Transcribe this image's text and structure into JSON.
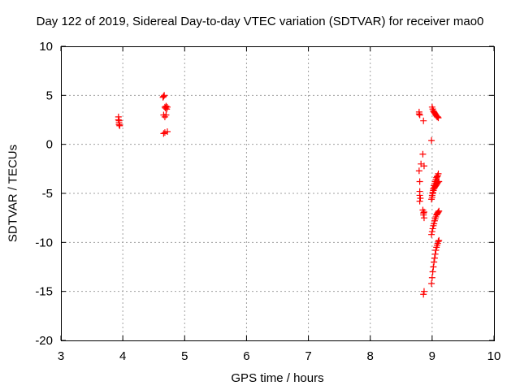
{
  "chart_data": {
    "type": "scatter",
    "title": "Day 122 of 2019, Sidereal Day-to-day VTEC variation (SDTVAR) for receiver mao0",
    "xlabel": "GPS time / hours",
    "ylabel": "SDTVAR / TECUs",
    "xlim": [
      3,
      10
    ],
    "ylim": [
      -20,
      10
    ],
    "xticks": [
      3,
      4,
      5,
      6,
      7,
      8,
      9,
      10
    ],
    "yticks": [
      -20,
      -15,
      -10,
      -5,
      0,
      5,
      10
    ],
    "grid": true,
    "marker": "+",
    "color": "#ff0000",
    "series": [
      {
        "name": "SDTVAR",
        "x": [
          3.93,
          3.93,
          3.94,
          3.94,
          3.94,
          3.95,
          4.65,
          4.66,
          4.67,
          4.68,
          4.69,
          4.7,
          4.71,
          4.66,
          4.68,
          4.7,
          4.66,
          4.68,
          4.72,
          4.72,
          8.79,
          8.79,
          8.8,
          8.86,
          8.79,
          8.8,
          8.8,
          8.8,
          8.81,
          8.8,
          8.82,
          8.85,
          8.87,
          8.85,
          8.86,
          8.86,
          8.87,
          8.87,
          8.86,
          8.87,
          9.0,
          9.01,
          9.02,
          9.03,
          9.04,
          9.05,
          9.06,
          9.07,
          9.08,
          9.09,
          9.1,
          8.99,
          8.99,
          9.0,
          9.0,
          9.01,
          9.02,
          9.02,
          9.03,
          9.04,
          9.05,
          9.06,
          9.07,
          9.08,
          9.09,
          9.1,
          9.01,
          9.02,
          9.03,
          9.04,
          9.05,
          9.06,
          9.07,
          9.08,
          9.09,
          9.1,
          9.11,
          8.99,
          9.0,
          9.01,
          9.02,
          9.03,
          9.04,
          9.05,
          9.06,
          9.07,
          9.08,
          9.09,
          9.1,
          9.11,
          8.99,
          9.0,
          9.01,
          9.02,
          9.03,
          9.04,
          9.05,
          9.06,
          9.07,
          9.08,
          9.09,
          9.1,
          9.11
        ],
        "y": [
          2.8,
          2.5,
          2.2,
          2.0,
          2.4,
          1.9,
          4.8,
          4.9,
          5.0,
          3.8,
          3.7,
          3.9,
          3.6,
          3.0,
          2.8,
          3.0,
          1.1,
          1.2,
          1.3,
          3.8,
          3.3,
          3.1,
          3.0,
          2.4,
          -2.7,
          -3.8,
          -4.8,
          -5.2,
          -5.5,
          -5.8,
          -2.0,
          -1.0,
          -2.2,
          -6.7,
          -7.0,
          -7.2,
          -7.5,
          -6.9,
          -15.3,
          -15.0,
          3.8,
          3.6,
          3.4,
          3.3,
          3.2,
          3.1,
          3.0,
          2.9,
          2.8,
          2.8,
          2.7,
          0.4,
          -5.6,
          -5.4,
          -5.2,
          -5.0,
          -4.7,
          -4.5,
          -4.2,
          -4.0,
          -3.8,
          -3.6,
          -3.4,
          -3.3,
          -3.2,
          -3.0,
          -4.9,
          -4.7,
          -4.5,
          -4.4,
          -4.3,
          -4.2,
          -4.1,
          -4.0,
          -3.9,
          -3.8,
          -3.8,
          -9.2,
          -8.9,
          -8.6,
          -8.3,
          -8.1,
          -7.8,
          -7.6,
          -7.4,
          -7.2,
          -7.1,
          -7.0,
          -6.9,
          -6.8,
          -14.2,
          -13.6,
          -13.0,
          -12.5,
          -12.0,
          -11.6,
          -11.2,
          -10.8,
          -10.5,
          -10.3,
          -10.1,
          -9.9,
          -9.8
        ]
      }
    ]
  }
}
